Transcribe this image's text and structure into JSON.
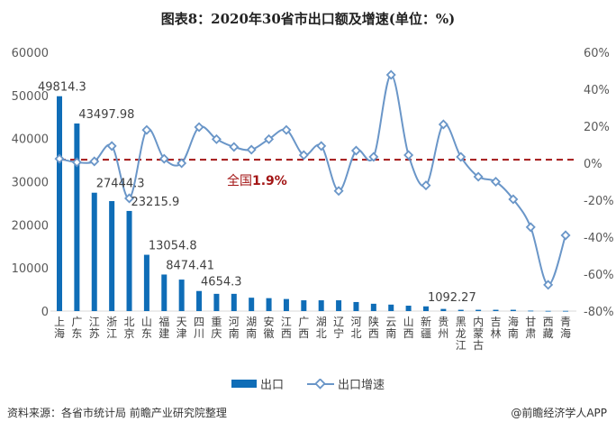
{
  "title": "图表8：2020年30省市出口额及增速(单位：%)",
  "chart_data": {
    "type": "bar+line",
    "categories": [
      "上海",
      "广东",
      "江苏",
      "浙江",
      "北京",
      "山东",
      "福建",
      "天津",
      "四川",
      "重庆",
      "河南",
      "湖南",
      "安徽",
      "江西",
      "广西",
      "湖北",
      "辽宁",
      "河北",
      "陕西",
      "云南",
      "山西",
      "新疆",
      "贵州",
      "黑龙江",
      "内蒙古",
      "吉林",
      "海南",
      "甘肃",
      "西藏",
      "青海"
    ],
    "series": [
      {
        "name": "出口",
        "type": "bar",
        "axis": "left",
        "color": "#0f6db7",
        "values": [
          49814.3,
          43497.98,
          27444.3,
          25500,
          23215.9,
          13054.8,
          8474.41,
          7300,
          4654.3,
          4000,
          4000,
          3100,
          3000,
          2800,
          2500,
          2500,
          2500,
          2100,
          1700,
          1500,
          1250,
          1092.27,
          500,
          300,
          300,
          300,
          300,
          100,
          50,
          50
        ]
      },
      {
        "name": "出口增速",
        "type": "line",
        "axis": "right",
        "color": "#6a96c8",
        "values": [
          2.4,
          0.5,
          1.0,
          9.3,
          -19,
          18,
          2.4,
          0,
          19.5,
          13,
          8.8,
          7.3,
          13,
          18,
          4.4,
          9.3,
          -15,
          6.8,
          3.4,
          47.8,
          4.4,
          -12,
          21,
          3.4,
          -7.3,
          -10,
          -19.5,
          -34.6,
          -65.8,
          -39
        ]
      }
    ],
    "data_labels": [
      {
        "index": 0,
        "text": "49814.3"
      },
      {
        "index": 1,
        "text": "43497.98"
      },
      {
        "index": 2,
        "text": "27444.3"
      },
      {
        "index": 4,
        "text": "23215.9"
      },
      {
        "index": 5,
        "text": "13054.8"
      },
      {
        "index": 6,
        "text": "8474.41"
      },
      {
        "index": 8,
        "text": "4654.3"
      },
      {
        "index": 21,
        "text": "1092.27"
      }
    ],
    "left_axis": {
      "range": [
        0,
        60000
      ],
      "ticks": [
        "0",
        "10000",
        "20000",
        "30000",
        "40000",
        "50000",
        "60000"
      ]
    },
    "right_axis": {
      "range": [
        -80,
        60
      ],
      "ticks": [
        "-80%",
        "-60%",
        "-40%",
        "-20%",
        "0%",
        "20%",
        "40%",
        "60%"
      ]
    },
    "reference_line": {
      "value": 1.9,
      "label_prefix": "全国",
      "label_value": "1.9%",
      "color": "#a31515"
    },
    "grid": false,
    "legend_position": "bottom"
  },
  "legend": {
    "bar": "出口",
    "line": "出口增速"
  },
  "footer": {
    "source": "资料来源：各省市统计局 前瞻产业研究院整理",
    "credit": "@前瞻经济学人APP"
  }
}
